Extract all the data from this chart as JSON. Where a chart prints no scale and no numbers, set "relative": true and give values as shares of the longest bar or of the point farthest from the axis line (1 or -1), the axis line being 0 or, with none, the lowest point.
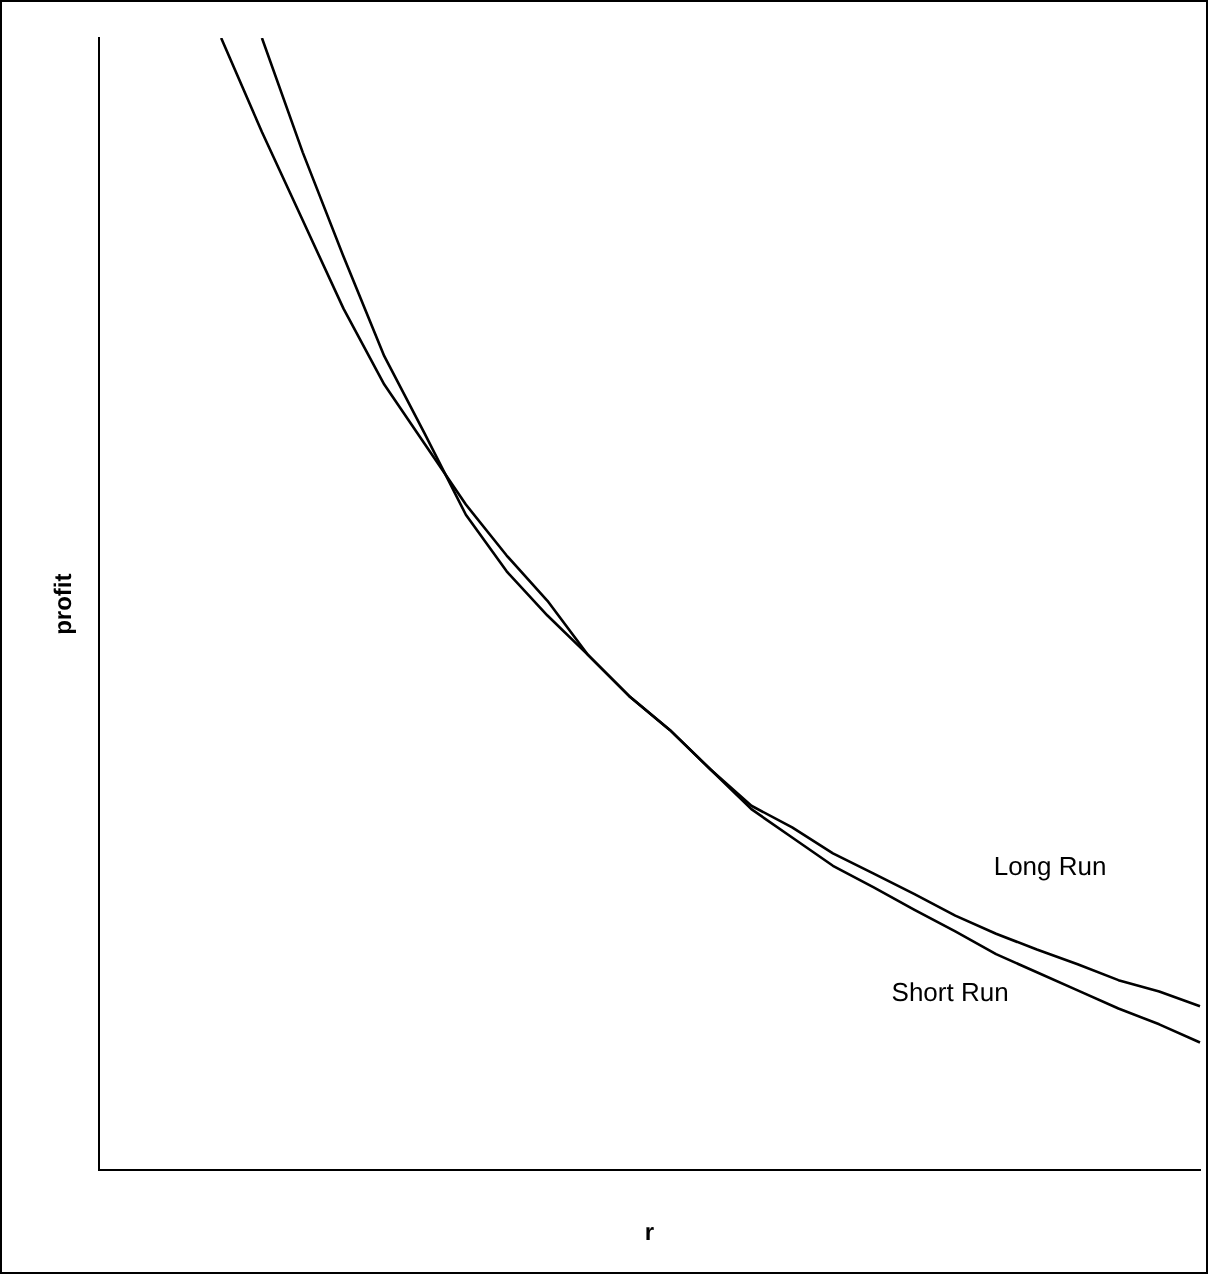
{
  "chart_data": {
    "type": "line",
    "relative": true,
    "xlabel": "r",
    "ylabel": "profit",
    "grid": false,
    "legend": false,
    "marker": "none",
    "line_style": "solid",
    "categories": [
      null,
      null,
      null,
      null,
      null,
      null,
      null,
      null,
      null,
      null,
      null,
      null,
      null,
      null,
      null,
      null,
      null,
      null,
      null,
      null,
      null,
      null,
      null,
      null,
      null,
      null,
      null,
      null
    ],
    "series": [
      {
        "name": "Long Run",
        "color": "#000000",
        "values": [
          null,
          null,
          null,
          null,
          1,
          0.899,
          0.807,
          0.719,
          0.65,
          0.579,
          0.529,
          0.49,
          0.455,
          0.419,
          0.389,
          0.354,
          0.322,
          0.303,
          0.28,
          0.262,
          0.244,
          0.225,
          0.209,
          0.195,
          0.182,
          0.168,
          0.158,
          0.145
        ]
      },
      {
        "name": "Short Run",
        "color": "#000000",
        "values": [
          null,
          null,
          null,
          1,
          0.917,
          0.839,
          0.761,
          0.694,
          0.641,
          0.588,
          0.543,
          0.503,
          0.455,
          0.419,
          0.389,
          0.354,
          0.319,
          0.294,
          0.269,
          0.25,
          0.23,
          0.211,
          0.191,
          0.175,
          0.159,
          0.143,
          0.129,
          0.113
        ]
      }
    ]
  }
}
